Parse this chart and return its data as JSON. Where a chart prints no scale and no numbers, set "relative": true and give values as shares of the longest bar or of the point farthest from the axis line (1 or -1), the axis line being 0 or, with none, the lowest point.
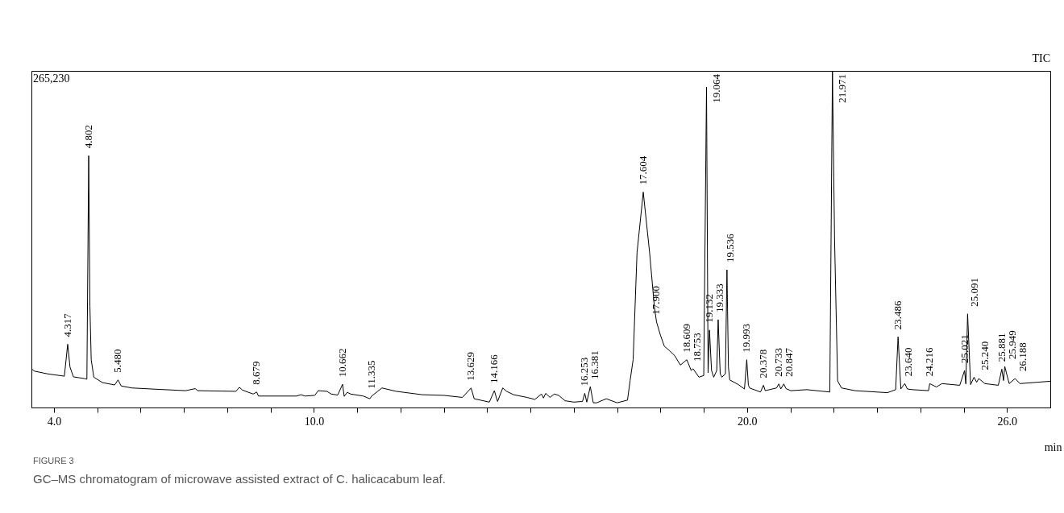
{
  "chart_data": {
    "type": "line",
    "relative": true,
    "xlabel": "min",
    "xlim": [
      3.48,
      27.0
    ],
    "xticks": [
      {
        "value": 4,
        "label": "4.0"
      },
      {
        "value": 5,
        "label": null
      },
      {
        "value": 6,
        "label": null
      },
      {
        "value": 7,
        "label": null
      },
      {
        "value": 8,
        "label": null
      },
      {
        "value": 9,
        "label": null
      },
      {
        "value": 10,
        "label": "10.0"
      },
      {
        "value": 11,
        "label": null
      },
      {
        "value": 12,
        "label": null
      },
      {
        "value": 13,
        "label": null
      },
      {
        "value": 14,
        "label": null
      },
      {
        "value": 15,
        "label": null
      },
      {
        "value": 16,
        "label": null
      },
      {
        "value": 17,
        "label": null
      },
      {
        "value": 18,
        "label": null
      },
      {
        "value": 19,
        "label": null
      },
      {
        "value": 20,
        "label": "20.0"
      },
      {
        "value": 21,
        "label": null
      },
      {
        "value": 22,
        "label": null
      },
      {
        "value": 23,
        "label": null
      },
      {
        "value": 24,
        "label": null
      },
      {
        "value": 25,
        "label": null
      },
      {
        "value": 26,
        "label": "26.0"
      }
    ],
    "grid": false,
    "marker": "none",
    "line_style": "solid",
    "series": [
      {
        "color": "#000000",
        "x": [
          3.48,
          3.55,
          3.85,
          4.24,
          4.317,
          4.37,
          4.45,
          4.7,
          4.76,
          4.802,
          4.83,
          4.86,
          4.92,
          5.12,
          5.4,
          5.48,
          5.55,
          5.8,
          6.4,
          7.04,
          7.26,
          7.32,
          8.2,
          8.28,
          8.35,
          8.47,
          8.6,
          8.679,
          8.72,
          9.6,
          9.7,
          9.8,
          10.02,
          10.1,
          10.3,
          10.4,
          10.55,
          10.662,
          10.7,
          10.77,
          10.85,
          11.14,
          11.29,
          11.335,
          11.57,
          11.9,
          12.5,
          13.0,
          13.43,
          13.629,
          13.7,
          14.05,
          14.166,
          14.24,
          14.36,
          14.45,
          14.61,
          14.92,
          15.1,
          15.255,
          15.3,
          15.351,
          15.45,
          15.55,
          15.65,
          15.8,
          16.0,
          16.2,
          16.253,
          16.3,
          16.381,
          16.45,
          16.53,
          16.75,
          17.0,
          17.24,
          17.3,
          17.37,
          17.46,
          17.604,
          17.75,
          17.86,
          17.91,
          18.0,
          18.09,
          18.2,
          18.33,
          18.46,
          18.609,
          18.71,
          18.753,
          18.89,
          19.0,
          19.064,
          19.1,
          19.132,
          19.18,
          19.23,
          19.3,
          19.333,
          19.38,
          19.42,
          19.5,
          19.536,
          19.57,
          19.6,
          19.8,
          19.94,
          19.993,
          20.03,
          20.06,
          20.31,
          20.378,
          20.42,
          20.68,
          20.733,
          20.78,
          20.847,
          20.9,
          21.01,
          21.38,
          21.91,
          21.971,
          22.02,
          22.09,
          22.18,
          22.49,
          23.24,
          23.43,
          23.486,
          23.55,
          23.64,
          23.7,
          23.82,
          24.19,
          24.216,
          24.37,
          24.5,
          24.91,
          25.021,
          25.05,
          25.091,
          25.16,
          25.24,
          25.3,
          25.349,
          25.49,
          25.8,
          25.881,
          25.92,
          25.949,
          26.05,
          26.188,
          26.3,
          26.7,
          27.0
        ],
        "values": [
          0.115,
          0.108,
          0.1,
          0.093,
          0.188,
          0.12,
          0.091,
          0.086,
          0.084,
          0.748,
          0.3,
          0.142,
          0.09,
          0.074,
          0.067,
          0.082,
          0.064,
          0.058,
          0.054,
          0.05,
          0.056,
          0.05,
          0.048,
          0.06,
          0.052,
          0.046,
          0.04,
          0.046,
          0.034,
          0.034,
          0.038,
          0.034,
          0.036,
          0.05,
          0.048,
          0.04,
          0.037,
          0.069,
          0.033,
          0.045,
          0.04,
          0.034,
          0.026,
          0.034,
          0.058,
          0.048,
          0.038,
          0.036,
          0.03,
          0.058,
          0.026,
          0.016,
          0.05,
          0.018,
          0.058,
          0.048,
          0.038,
          0.03,
          0.024,
          0.04,
          0.028,
          0.042,
          0.03,
          0.04,
          0.036,
          0.02,
          0.016,
          0.018,
          0.042,
          0.016,
          0.062,
          0.014,
          0.014,
          0.026,
          0.014,
          0.022,
          0.08,
          0.142,
          0.46,
          0.64,
          0.46,
          0.3,
          0.254,
          0.215,
          0.182,
          0.17,
          0.154,
          0.126,
          0.142,
          0.11,
          0.115,
          0.09,
          0.095,
          0.952,
          0.103,
          0.23,
          0.11,
          0.09,
          0.11,
          0.261,
          0.1,
          0.09,
          0.1,
          0.409,
          0.12,
          0.082,
          0.068,
          0.055,
          0.142,
          0.066,
          0.058,
          0.046,
          0.066,
          0.05,
          0.058,
          0.07,
          0.055,
          0.07,
          0.056,
          0.05,
          0.053,
          0.046,
          1.0,
          0.5,
          0.079,
          0.058,
          0.05,
          0.044,
          0.053,
          0.21,
          0.055,
          0.071,
          0.055,
          0.053,
          0.05,
          0.071,
          0.061,
          0.071,
          0.066,
          0.11,
          0.07,
          0.278,
          0.068,
          0.09,
          0.075,
          0.086,
          0.071,
          0.066,
          0.114,
          0.08,
          0.122,
          0.071,
          0.086,
          0.071,
          0.075,
          0.078
        ]
      }
    ],
    "annotations": [
      "TIC",
      "265,230",
      {
        "text": "4.317",
        "x": 4.317,
        "y": 0.188
      },
      {
        "text": "4.802",
        "x": 4.802,
        "y": 0.748
      },
      {
        "text": "5.480",
        "x": 5.48,
        "y": 0.082
      },
      {
        "text": "8.679",
        "x": 8.679,
        "y": 0.046
      },
      {
        "text": "10.662",
        "x": 10.662,
        "y": 0.069
      },
      {
        "text": "11.335",
        "x": 11.335,
        "y": 0.034
      },
      {
        "text": "13.629",
        "x": 13.629,
        "y": 0.058
      },
      {
        "text": "14.166",
        "x": 14.166,
        "y": 0.05
      },
      {
        "text": "16.253",
        "x": 16.253,
        "y": 0.042
      },
      {
        "text": "16.381",
        "x": 16.381,
        "y": 0.062
      },
      {
        "text": "17.604",
        "x": 17.604,
        "y": 0.64
      },
      {
        "text": "17.900",
        "x": 17.91,
        "y": 0.254
      },
      {
        "text": "18.609",
        "x": 18.609,
        "y": 0.142
      },
      {
        "text": "18.753",
        "x": 18.753,
        "y": 0.115
      },
      {
        "text": "19.064",
        "x": 19.064,
        "y": 0.952
      },
      {
        "text": "19.132",
        "x": 19.132,
        "y": 0.23
      },
      {
        "text": "19.333",
        "x": 19.333,
        "y": 0.261
      },
      {
        "text": "19.536",
        "x": 19.536,
        "y": 0.409
      },
      {
        "text": "19.993",
        "x": 19.993,
        "y": 0.142
      },
      {
        "text": "20.378",
        "x": 20.378,
        "y": 0.066
      },
      {
        "text": "20.733",
        "x": 20.733,
        "y": 0.07
      },
      {
        "text": "20.847",
        "x": 20.847,
        "y": 0.07
      },
      {
        "text": "21.971",
        "x": 21.971,
        "y": 1.0
      },
      {
        "text": "23.486",
        "x": 23.486,
        "y": 0.21
      },
      {
        "text": "23.640",
        "x": 23.64,
        "y": 0.071
      },
      {
        "text": "24.216",
        "x": 24.216,
        "y": 0.071
      },
      {
        "text": "25.021",
        "x": 25.021,
        "y": 0.11
      },
      {
        "text": "25.091",
        "x": 25.091,
        "y": 0.278
      },
      {
        "text": "25.240",
        "x": 25.24,
        "y": 0.09
      },
      {
        "text": "25.881",
        "x": 25.881,
        "y": 0.114
      },
      {
        "text": "25.949",
        "x": 25.949,
        "y": 0.122
      },
      {
        "text": "26.188",
        "x": 26.188,
        "y": 0.086
      },
      "FIGURE 3",
      "GC–MS chromatogram of microwave assisted extract of C. halicacabum leaf."
    ]
  }
}
